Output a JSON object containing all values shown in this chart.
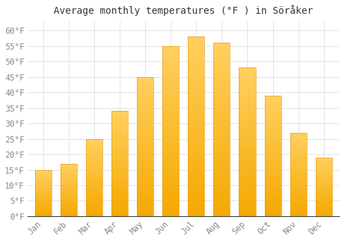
{
  "title": "Average monthly temperatures (°F ) in Söråker",
  "months": [
    "Jan",
    "Feb",
    "Mar",
    "Apr",
    "May",
    "Jun",
    "Jul",
    "Aug",
    "Sep",
    "Oct",
    "Nov",
    "Dec"
  ],
  "values": [
    15,
    17,
    25,
    34,
    45,
    55,
    58,
    56,
    48,
    39,
    27,
    19
  ],
  "bar_color_top": "#FFC84A",
  "bar_color_bottom": "#F5A800",
  "background_color": "#FFFFFF",
  "grid_color": "#DDDDDD",
  "text_color": "#888888",
  "axis_color": "#AAAAAA",
  "ylim": [
    0,
    63
  ],
  "yticks": [
    0,
    5,
    10,
    15,
    20,
    25,
    30,
    35,
    40,
    45,
    50,
    55,
    60
  ],
  "title_fontsize": 10,
  "tick_fontsize": 8.5,
  "bar_width": 0.65
}
